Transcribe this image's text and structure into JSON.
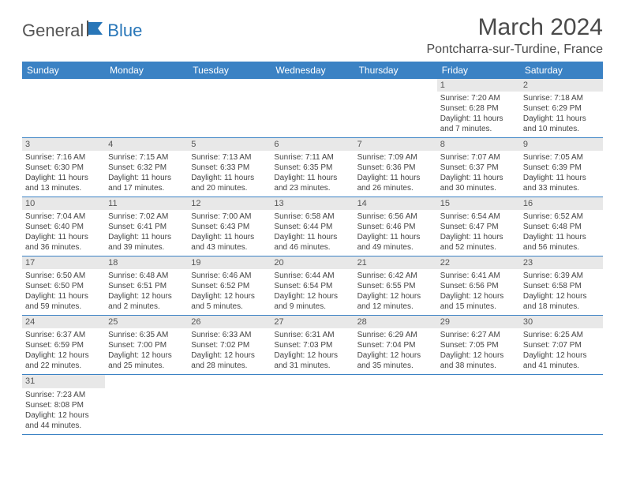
{
  "logo": {
    "part1": "General",
    "part2": "Blue"
  },
  "header": {
    "title": "March 2024",
    "location": "Pontcharra-sur-Turdine, France"
  },
  "colors": {
    "header_bg": "#3b82c4",
    "header_text": "#ffffff",
    "daynum_bg": "#e8e8e8",
    "row_border": "#3b82c4",
    "logo_gray": "#555555",
    "logo_blue": "#2876b8"
  },
  "weekdays": [
    "Sunday",
    "Monday",
    "Tuesday",
    "Wednesday",
    "Thursday",
    "Friday",
    "Saturday"
  ],
  "days": [
    {
      "n": 1,
      "sr": "7:20 AM",
      "ss": "6:28 PM",
      "dl": "11 hours and 7 minutes."
    },
    {
      "n": 2,
      "sr": "7:18 AM",
      "ss": "6:29 PM",
      "dl": "11 hours and 10 minutes."
    },
    {
      "n": 3,
      "sr": "7:16 AM",
      "ss": "6:30 PM",
      "dl": "11 hours and 13 minutes."
    },
    {
      "n": 4,
      "sr": "7:15 AM",
      "ss": "6:32 PM",
      "dl": "11 hours and 17 minutes."
    },
    {
      "n": 5,
      "sr": "7:13 AM",
      "ss": "6:33 PM",
      "dl": "11 hours and 20 minutes."
    },
    {
      "n": 6,
      "sr": "7:11 AM",
      "ss": "6:35 PM",
      "dl": "11 hours and 23 minutes."
    },
    {
      "n": 7,
      "sr": "7:09 AM",
      "ss": "6:36 PM",
      "dl": "11 hours and 26 minutes."
    },
    {
      "n": 8,
      "sr": "7:07 AM",
      "ss": "6:37 PM",
      "dl": "11 hours and 30 minutes."
    },
    {
      "n": 9,
      "sr": "7:05 AM",
      "ss": "6:39 PM",
      "dl": "11 hours and 33 minutes."
    },
    {
      "n": 10,
      "sr": "7:04 AM",
      "ss": "6:40 PM",
      "dl": "11 hours and 36 minutes."
    },
    {
      "n": 11,
      "sr": "7:02 AM",
      "ss": "6:41 PM",
      "dl": "11 hours and 39 minutes."
    },
    {
      "n": 12,
      "sr": "7:00 AM",
      "ss": "6:43 PM",
      "dl": "11 hours and 43 minutes."
    },
    {
      "n": 13,
      "sr": "6:58 AM",
      "ss": "6:44 PM",
      "dl": "11 hours and 46 minutes."
    },
    {
      "n": 14,
      "sr": "6:56 AM",
      "ss": "6:46 PM",
      "dl": "11 hours and 49 minutes."
    },
    {
      "n": 15,
      "sr": "6:54 AM",
      "ss": "6:47 PM",
      "dl": "11 hours and 52 minutes."
    },
    {
      "n": 16,
      "sr": "6:52 AM",
      "ss": "6:48 PM",
      "dl": "11 hours and 56 minutes."
    },
    {
      "n": 17,
      "sr": "6:50 AM",
      "ss": "6:50 PM",
      "dl": "11 hours and 59 minutes."
    },
    {
      "n": 18,
      "sr": "6:48 AM",
      "ss": "6:51 PM",
      "dl": "12 hours and 2 minutes."
    },
    {
      "n": 19,
      "sr": "6:46 AM",
      "ss": "6:52 PM",
      "dl": "12 hours and 5 minutes."
    },
    {
      "n": 20,
      "sr": "6:44 AM",
      "ss": "6:54 PM",
      "dl": "12 hours and 9 minutes."
    },
    {
      "n": 21,
      "sr": "6:42 AM",
      "ss": "6:55 PM",
      "dl": "12 hours and 12 minutes."
    },
    {
      "n": 22,
      "sr": "6:41 AM",
      "ss": "6:56 PM",
      "dl": "12 hours and 15 minutes."
    },
    {
      "n": 23,
      "sr": "6:39 AM",
      "ss": "6:58 PM",
      "dl": "12 hours and 18 minutes."
    },
    {
      "n": 24,
      "sr": "6:37 AM",
      "ss": "6:59 PM",
      "dl": "12 hours and 22 minutes."
    },
    {
      "n": 25,
      "sr": "6:35 AM",
      "ss": "7:00 PM",
      "dl": "12 hours and 25 minutes."
    },
    {
      "n": 26,
      "sr": "6:33 AM",
      "ss": "7:02 PM",
      "dl": "12 hours and 28 minutes."
    },
    {
      "n": 27,
      "sr": "6:31 AM",
      "ss": "7:03 PM",
      "dl": "12 hours and 31 minutes."
    },
    {
      "n": 28,
      "sr": "6:29 AM",
      "ss": "7:04 PM",
      "dl": "12 hours and 35 minutes."
    },
    {
      "n": 29,
      "sr": "6:27 AM",
      "ss": "7:05 PM",
      "dl": "12 hours and 38 minutes."
    },
    {
      "n": 30,
      "sr": "6:25 AM",
      "ss": "7:07 PM",
      "dl": "12 hours and 41 minutes."
    },
    {
      "n": 31,
      "sr": "7:23 AM",
      "ss": "8:08 PM",
      "dl": "12 hours and 44 minutes."
    }
  ],
  "labels": {
    "sunrise": "Sunrise:",
    "sunset": "Sunset:",
    "daylight": "Daylight:"
  },
  "layout": {
    "first_weekday_index": 5,
    "total_cells": 42
  }
}
